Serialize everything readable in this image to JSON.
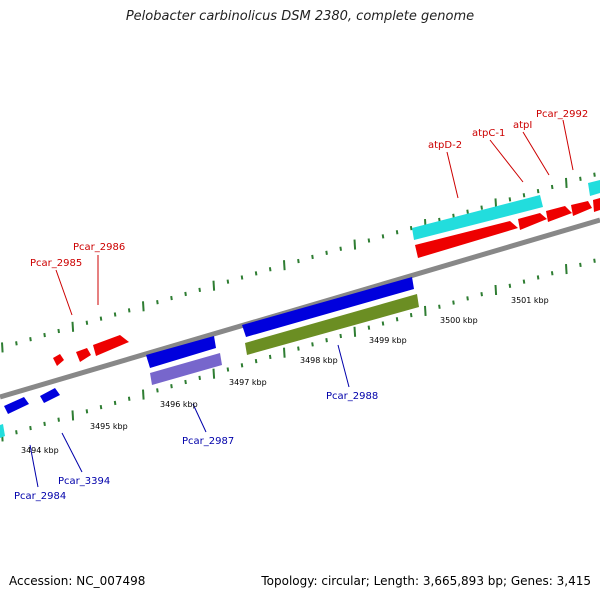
{
  "title": "Pelobacter carbinolicus DSM 2380, complete genome",
  "footer": {
    "accession": "Accession: NC_007498",
    "stats": "Topology: circular; Length: 3,665,893 bp; Genes: 3,415"
  },
  "colors": {
    "forward_cds": "#ee0000",
    "reverse_cds": "#0000dd",
    "rna": "#22dddd",
    "purple_cds": "#7766cc",
    "olive_cds": "#6b8e23",
    "backbone": "#888888",
    "tick": "#2e7d32",
    "label_forward": "#cc0000",
    "label_reverse": "#0000aa"
  },
  "tick_labels": [
    "3494 kbp",
    "3495 kbp",
    "3496 kbp",
    "3497 kbp",
    "3498 kbp",
    "3499 kbp",
    "3500 kbp",
    "3501 kbp"
  ],
  "gene_labels_forward": [
    "Pcar_2985",
    "Pcar_2986",
    "atpD-2",
    "atpC-1",
    "atpI",
    "Pcar_2992"
  ],
  "gene_labels_reverse": [
    "Pcar_2984",
    "Pcar_3394",
    "Pcar_2987",
    "Pcar_2988"
  ]
}
